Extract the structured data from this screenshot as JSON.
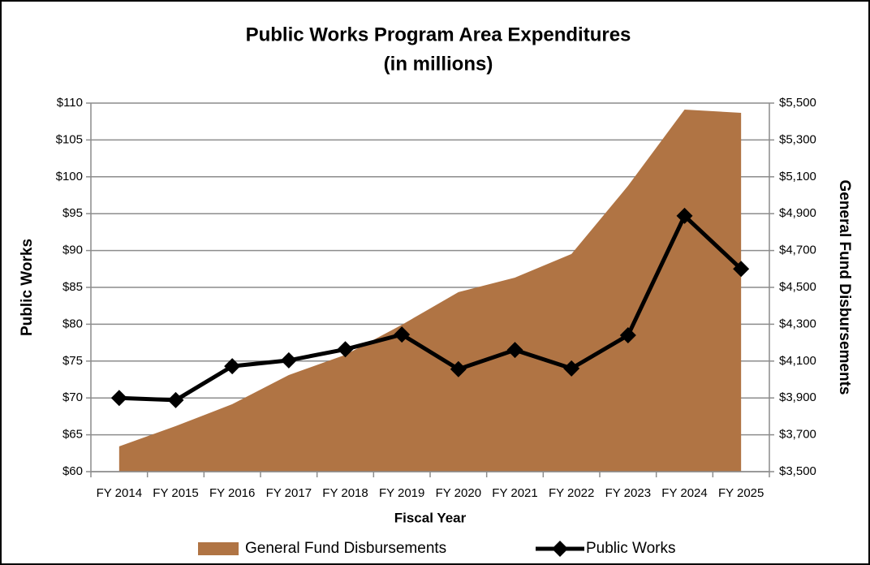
{
  "chart_data": {
    "type": "line",
    "title": "Public Works Program Area Expenditures",
    "subtitle": "(in millions)",
    "xlabel": "Fiscal Year",
    "ylabel": "Public Works",
    "y2label": "General Fund Disbursements",
    "categories": [
      "FY 2014",
      "FY 2015",
      "FY 2016",
      "FY 2017",
      "FY 2018",
      "FY 2019",
      "FY 2020",
      "FY 2021",
      "FY 2022",
      "FY 2023",
      "FY 2024",
      "FY 2025"
    ],
    "series": [
      {
        "name": "General Fund Disbursements",
        "type": "area",
        "axis": "y2",
        "color": "#b07444",
        "values": [
          3637,
          3747,
          3866,
          4024,
          4134,
          4297,
          4474,
          4553,
          4681,
          5051,
          5465,
          5447
        ]
      },
      {
        "name": "Public Works",
        "type": "line",
        "marker": "diamond",
        "color": "#000000",
        "values": [
          70.0,
          69.7,
          74.3,
          75.1,
          76.6,
          78.6,
          73.9,
          76.5,
          74.0,
          78.5,
          94.7,
          87.5
        ]
      }
    ],
    "ylim": [
      60,
      110
    ],
    "yticks": [
      {
        "value": 60,
        "label": "$60"
      },
      {
        "value": 65,
        "label": "$65"
      },
      {
        "value": 70,
        "label": "$70"
      },
      {
        "value": 75,
        "label": "$75"
      },
      {
        "value": 80,
        "label": "$80"
      },
      {
        "value": 85,
        "label": "$85"
      },
      {
        "value": 90,
        "label": "$90"
      },
      {
        "value": 95,
        "label": "$95"
      },
      {
        "value": 100,
        "label": "$100"
      },
      {
        "value": 105,
        "label": "$105"
      },
      {
        "value": 110,
        "label": "$110"
      }
    ],
    "y2lim": [
      3500,
      5500
    ],
    "y2ticks": [
      {
        "value": 3500,
        "label": "$3,500"
      },
      {
        "value": 3700,
        "label": "$3,700"
      },
      {
        "value": 3900,
        "label": "$3,900"
      },
      {
        "value": 4100,
        "label": "$4,100"
      },
      {
        "value": 4300,
        "label": "$4,300"
      },
      {
        "value": 4500,
        "label": "$4,500"
      },
      {
        "value": 4700,
        "label": "$4,700"
      },
      {
        "value": 4900,
        "label": "$4,900"
      },
      {
        "value": 5100,
        "label": "$5,100"
      },
      {
        "value": 5300,
        "label": "$5,300"
      },
      {
        "value": 5500,
        "label": "$5,500"
      }
    ],
    "grid": true,
    "legend": "bottom"
  }
}
